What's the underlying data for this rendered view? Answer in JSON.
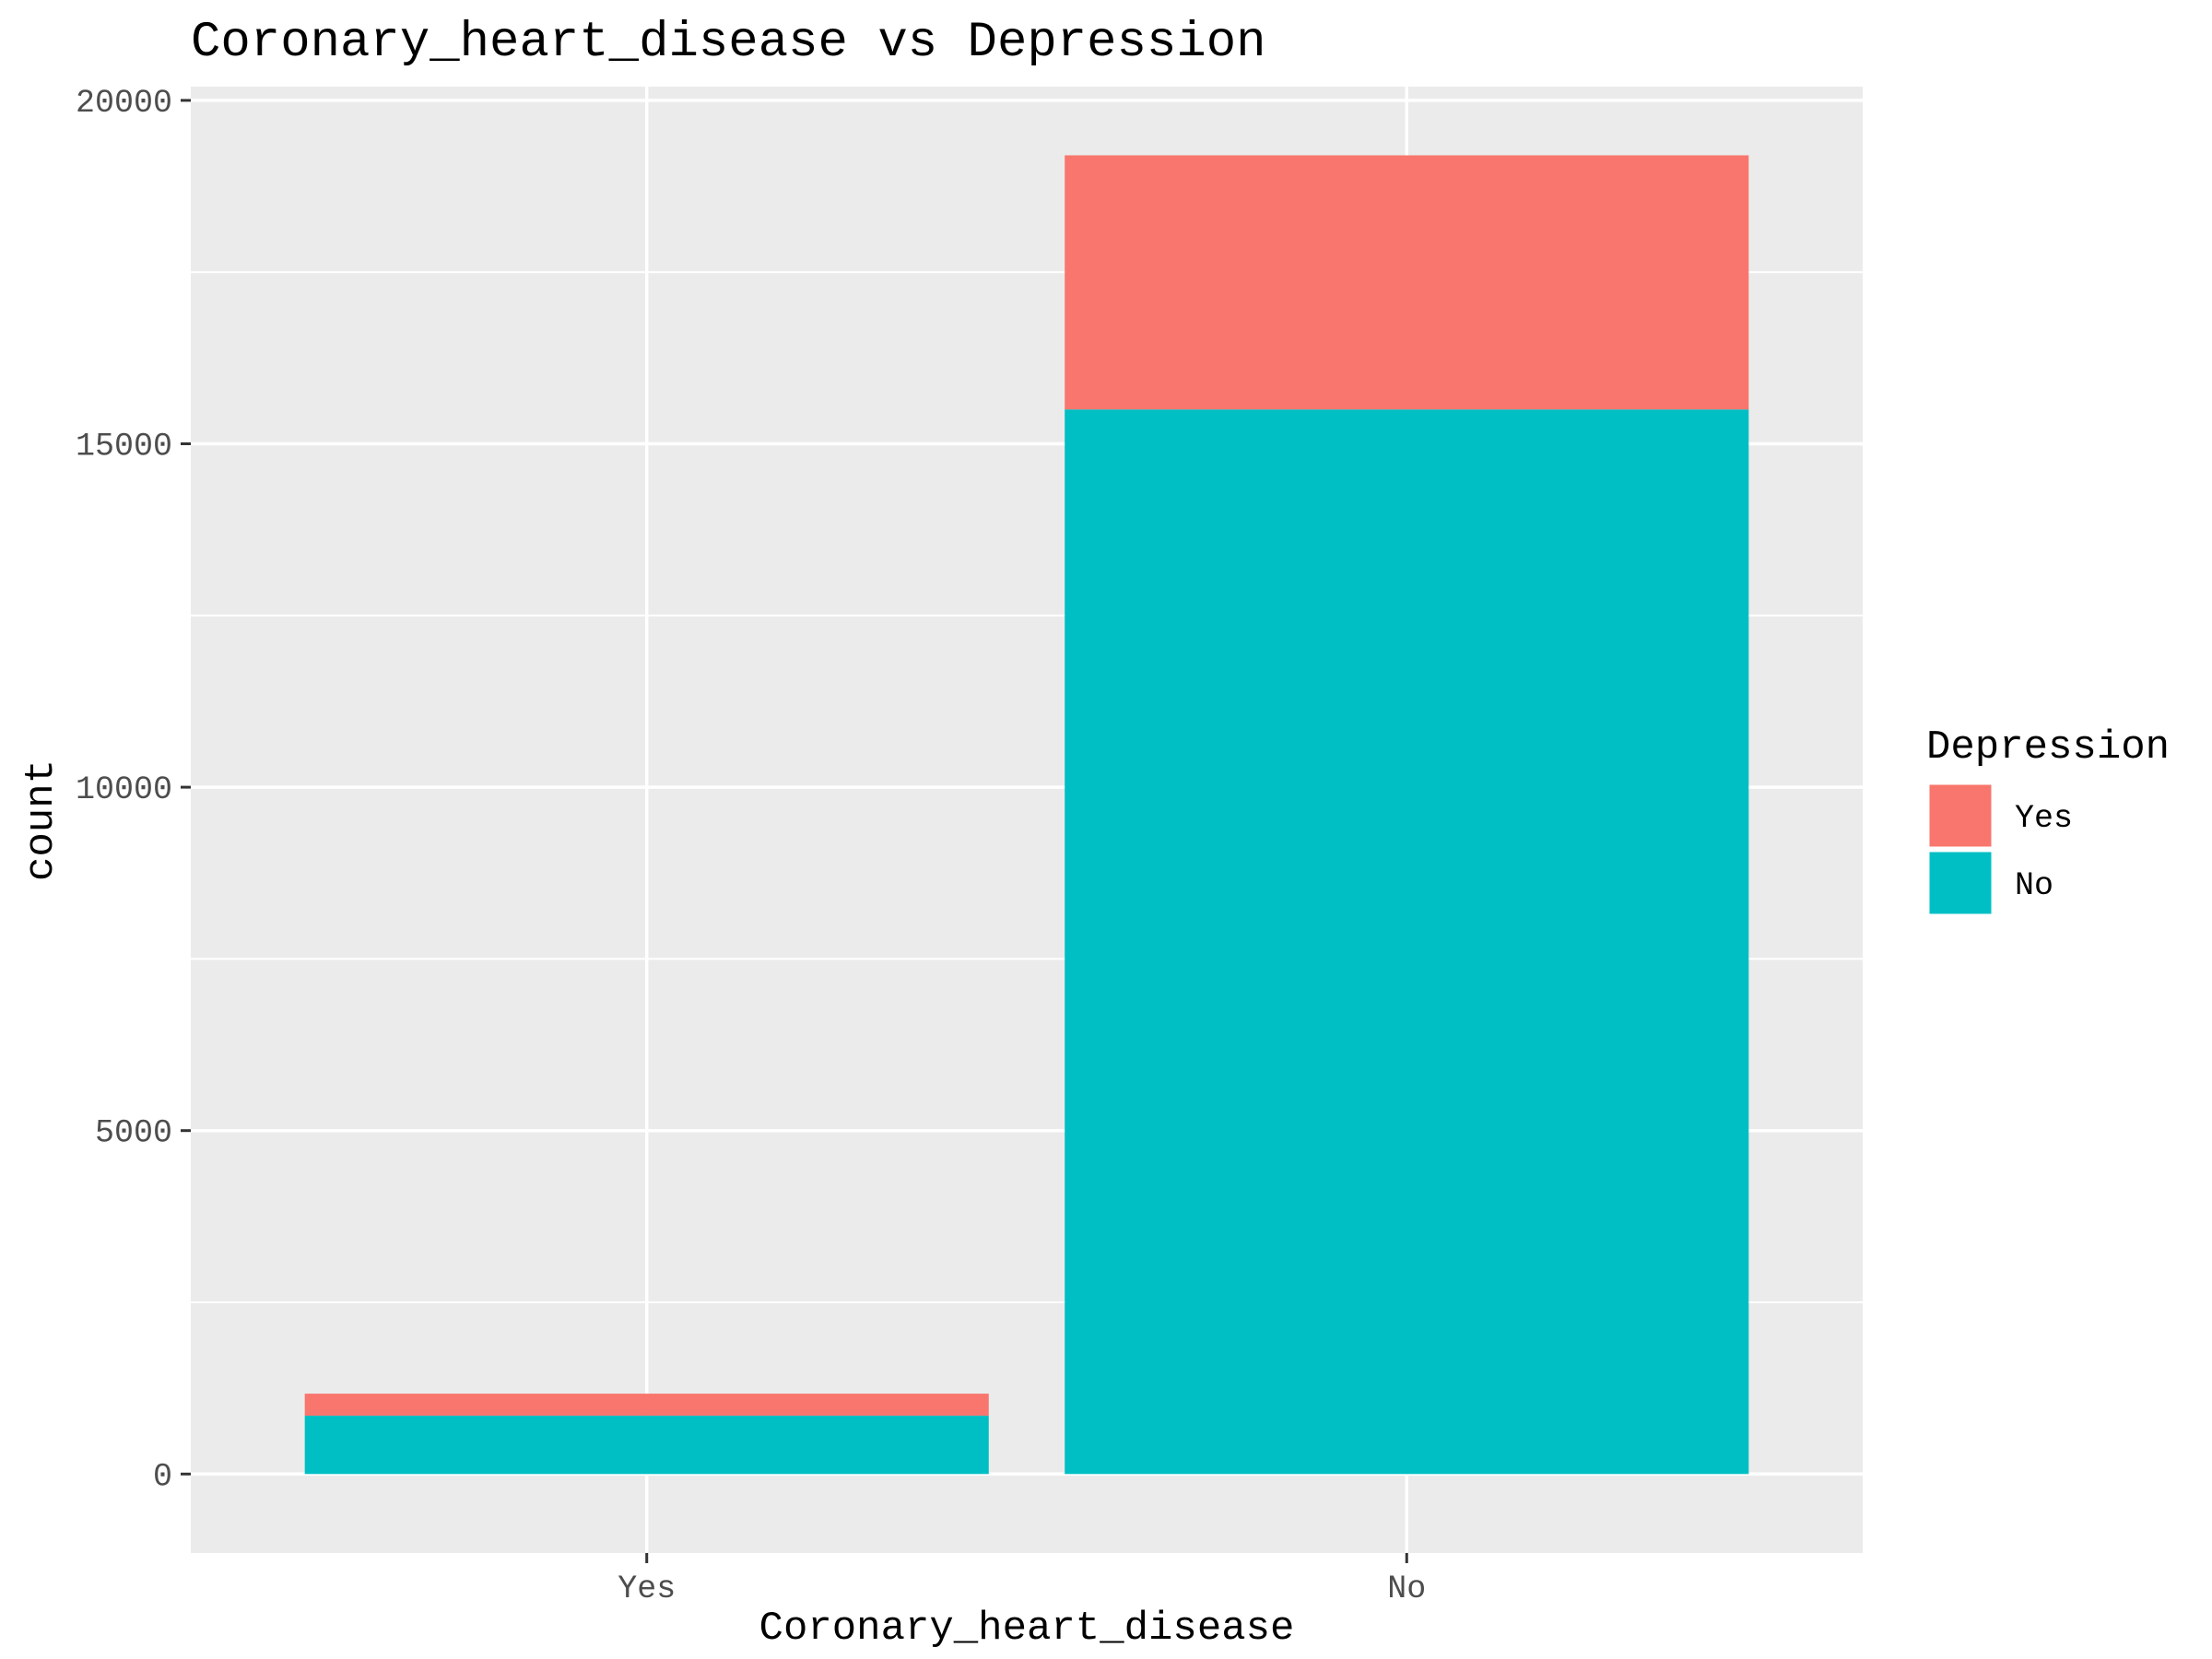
{
  "chart_data": {
    "type": "bar",
    "stacked": true,
    "title": "Coronary_heart_disease vs Depression",
    "xlabel": "Coronary_heart_disease",
    "ylabel": "count",
    "categories": [
      "Yes",
      "No"
    ],
    "series": [
      {
        "name": "Yes",
        "color": "#F8766D",
        "values": [
          320,
          3700
        ]
      },
      {
        "name": "No",
        "color": "#00BFC4",
        "values": [
          850,
          15500
        ]
      }
    ],
    "ylim": [
      -1150,
      20200
    ],
    "yticks": [
      0,
      5000,
      10000,
      15000,
      20000
    ],
    "ytick_labels": [
      "0",
      "5000",
      "10000",
      "15000",
      "20000"
    ],
    "grid": true,
    "legend": {
      "title": "Depression",
      "position": "right",
      "entries": [
        "Yes",
        "No"
      ]
    },
    "panel_background": "#EBEBEB",
    "gridline_color": "#FFFFFF"
  }
}
